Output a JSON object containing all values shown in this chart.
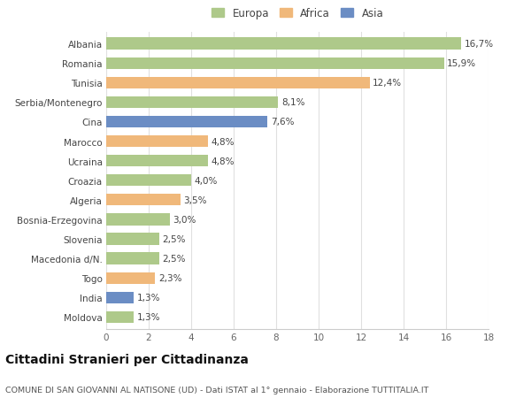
{
  "categories": [
    "Albania",
    "Romania",
    "Tunisia",
    "Serbia/Montenegro",
    "Cina",
    "Marocco",
    "Ucraina",
    "Croazia",
    "Algeria",
    "Bosnia-Erzegovina",
    "Slovenia",
    "Macedonia d/N.",
    "Togo",
    "India",
    "Moldova"
  ],
  "values": [
    16.7,
    15.9,
    12.4,
    8.1,
    7.6,
    4.8,
    4.8,
    4.0,
    3.5,
    3.0,
    2.5,
    2.5,
    2.3,
    1.3,
    1.3
  ],
  "labels": [
    "16,7%",
    "15,9%",
    "12,4%",
    "8,1%",
    "7,6%",
    "4,8%",
    "4,8%",
    "4,0%",
    "3,5%",
    "3,0%",
    "2,5%",
    "2,5%",
    "2,3%",
    "1,3%",
    "1,3%"
  ],
  "continents": [
    "Europa",
    "Europa",
    "Africa",
    "Europa",
    "Asia",
    "Africa",
    "Europa",
    "Europa",
    "Africa",
    "Europa",
    "Europa",
    "Europa",
    "Africa",
    "Asia",
    "Europa"
  ],
  "colors": {
    "Europa": "#aec98a",
    "Africa": "#f0b87a",
    "Asia": "#6b8dc4"
  },
  "legend_order": [
    "Europa",
    "Africa",
    "Asia"
  ],
  "xlim": [
    0,
    18
  ],
  "xticks": [
    0,
    2,
    4,
    6,
    8,
    10,
    12,
    14,
    16,
    18
  ],
  "title": "Cittadini Stranieri per Cittadinanza",
  "subtitle": "COMUNE DI SAN GIOVANNI AL NATISONE (UD) - Dati ISTAT al 1° gennaio - Elaborazione TUTTITALIA.IT",
  "bg_color": "#ffffff",
  "grid_color": "#e0e0e0",
  "bar_height": 0.6,
  "label_fontsize": 7.5,
  "tick_label_fontsize": 7.5,
  "title_fontsize": 10,
  "subtitle_fontsize": 6.8,
  "legend_fontsize": 8.5
}
